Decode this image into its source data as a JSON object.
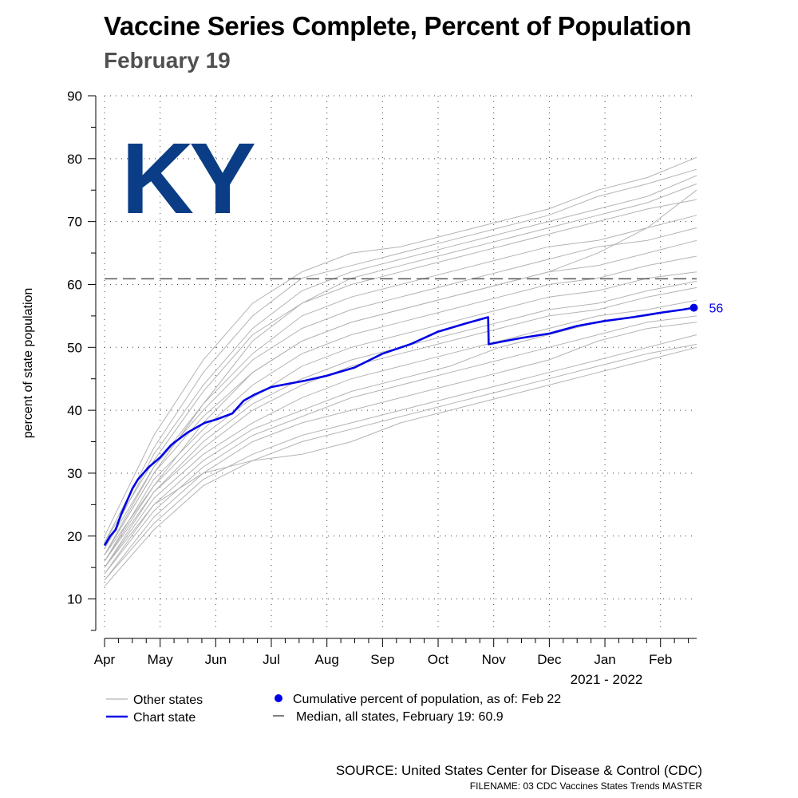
{
  "chart_data": {
    "type": "line",
    "title": "Vaccine Series Complete, Percent of Population",
    "subtitle": "February 19",
    "state_label": "KY",
    "ylabel": "percent of state population",
    "xlabel": "2021 - 2022",
    "ylim": [
      5,
      90
    ],
    "yticks": [
      10,
      20,
      30,
      40,
      50,
      60,
      70,
      80,
      90
    ],
    "xlim": [
      0,
      10.65
    ],
    "xticks": [
      {
        "pos": 0,
        "label": "Apr"
      },
      {
        "pos": 1,
        "label": "May"
      },
      {
        "pos": 2,
        "label": "Jun"
      },
      {
        "pos": 3,
        "label": "Jul"
      },
      {
        "pos": 4,
        "label": "Aug"
      },
      {
        "pos": 5,
        "label": "Sep"
      },
      {
        "pos": 6,
        "label": "Oct"
      },
      {
        "pos": 7,
        "label": "Nov"
      },
      {
        "pos": 8,
        "label": "Dec"
      },
      {
        "pos": 9,
        "label": "Jan"
      },
      {
        "pos": 10,
        "label": "Feb"
      }
    ],
    "median": {
      "value": 60.9,
      "label": "Median, all states, February 19: 60.9"
    },
    "chart_state": {
      "name": "KY",
      "x": [
        0,
        0.1,
        0.2,
        0.3,
        0.4,
        0.5,
        0.6,
        0.8,
        1.0,
        1.2,
        1.5,
        1.8,
        2.0,
        2.3,
        2.5,
        2.7,
        3.0,
        3.3,
        3.6,
        4.0,
        4.5,
        5.0,
        5.5,
        6.0,
        6.5,
        6.9,
        6.91,
        7.2,
        7.5,
        8.0,
        8.5,
        9.0,
        9.5,
        10.0,
        10.4,
        10.6
      ],
      "y": [
        18.5,
        20,
        21,
        23.5,
        25.5,
        27.5,
        29,
        31,
        32.5,
        34.5,
        36.5,
        38,
        38.5,
        39.5,
        41.5,
        42.5,
        43.7,
        44.2,
        44.7,
        45.5,
        46.8,
        49,
        50.5,
        52.5,
        53.8,
        54.8,
        50.5,
        51,
        51.5,
        52.2,
        53.4,
        54.2,
        54.8,
        55.5,
        56,
        56.3
      ]
    },
    "other_states": [
      {
        "name": "state-01",
        "values": [
          19,
          34,
          46,
          55,
          61,
          63,
          65,
          67,
          69,
          71,
          74,
          76,
          78.3
        ]
      },
      {
        "name": "state-02",
        "values": [
          20,
          36,
          48,
          57,
          62,
          65,
          66,
          68,
          70,
          72,
          75,
          77,
          80.2
        ]
      },
      {
        "name": "state-03",
        "values": [
          18,
          33,
          44,
          53,
          59,
          62,
          64,
          66,
          68,
          70,
          72,
          74,
          77.3
        ]
      },
      {
        "name": "state-04",
        "values": [
          19,
          32,
          43,
          52,
          57,
          60,
          62,
          64,
          66,
          68,
          70,
          72,
          73.5
        ]
      },
      {
        "name": "state-05",
        "values": [
          17,
          31,
          41,
          49,
          55,
          58,
          60,
          62,
          64,
          66,
          67,
          69,
          71
        ]
      },
      {
        "name": "state-06",
        "values": [
          18,
          31,
          40,
          48,
          53,
          56,
          58,
          60,
          62,
          64,
          66,
          67,
          69
        ]
      },
      {
        "name": "state-07",
        "values": [
          17,
          30,
          39,
          46,
          51,
          54,
          56,
          58,
          60,
          62,
          63,
          65,
          67
        ]
      },
      {
        "name": "state-08",
        "values": [
          16,
          29,
          37,
          44,
          49,
          52,
          54,
          56,
          58,
          60,
          61,
          63,
          64.5
        ]
      },
      {
        "name": "state-09",
        "values": [
          17,
          28,
          36,
          42,
          47,
          50,
          52,
          54,
          56,
          58,
          59,
          61,
          62
        ]
      },
      {
        "name": "state-10",
        "values": [
          16,
          27,
          35,
          41,
          45,
          48,
          50,
          52,
          54,
          56,
          57,
          59,
          60.5
        ]
      },
      {
        "name": "state-11",
        "values": [
          15,
          27,
          34,
          40,
          44,
          47,
          49,
          51,
          53,
          55,
          56,
          58,
          59.5
        ]
      },
      {
        "name": "state-12",
        "values": [
          15,
          26,
          33,
          38,
          42,
          45,
          47,
          49,
          51,
          53,
          55,
          56,
          57.5
        ]
      },
      {
        "name": "state-13",
        "values": [
          14,
          25,
          32,
          37,
          40,
          43,
          45,
          47,
          50,
          52,
          54,
          55,
          56.5
        ]
      },
      {
        "name": "state-14",
        "values": [
          14,
          24,
          31,
          36,
          39,
          42,
          44,
          46,
          48,
          50,
          52,
          54,
          55
        ]
      },
      {
        "name": "state-15",
        "values": [
          13,
          23,
          30,
          35,
          38,
          40,
          42,
          44,
          46,
          48,
          51,
          53,
          54
        ]
      },
      {
        "name": "state-16",
        "values": [
          13,
          22,
          29,
          33,
          36,
          38,
          40,
          42,
          44,
          46,
          48,
          50,
          52
        ]
      },
      {
        "name": "state-17",
        "values": [
          12,
          21,
          28,
          32,
          35,
          37,
          39,
          41,
          43,
          45,
          47,
          49,
          50.5
        ]
      },
      {
        "name": "state-18",
        "values": [
          15,
          25,
          30,
          32,
          33,
          35,
          38,
          40,
          42,
          44,
          46,
          48,
          50
        ]
      },
      {
        "name": "state-19",
        "values": [
          16,
          28,
          38,
          46,
          51,
          54,
          56,
          58,
          60,
          62,
          65,
          69,
          75
        ]
      },
      {
        "name": "state-20",
        "values": [
          17,
          30,
          41,
          51,
          57,
          61,
          63,
          65,
          67,
          69,
          71,
          73,
          76
        ]
      }
    ],
    "latest_point": {
      "value": 56,
      "label": "56"
    }
  },
  "legend": {
    "other_states": "Other states",
    "chart_state": "Chart state",
    "cumulative": "Cumulative percent of population, as of: Feb 22",
    "median": "Median, all states, February 19: 60.9"
  },
  "footer": {
    "source": "SOURCE: United States Center for Disease & Control (CDC)",
    "filename": "FILENAME: 03 CDC Vaccines States Trends MASTER"
  },
  "colors": {
    "chart_state": "#0000e6",
    "other_states": "#b4b4b4",
    "median": "#555555",
    "state_label": "#0b3d86"
  }
}
